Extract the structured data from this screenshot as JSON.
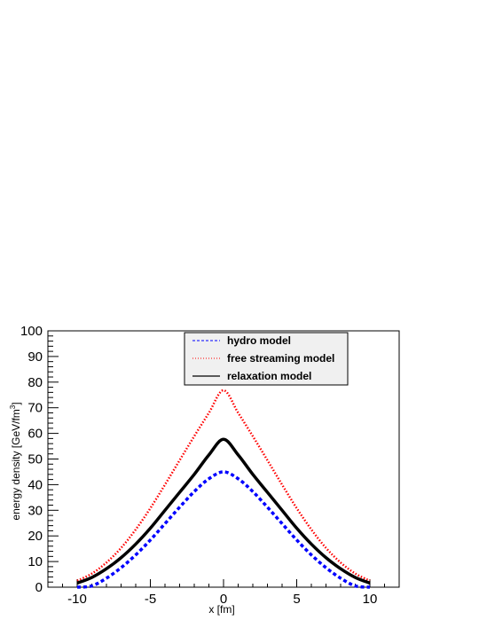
{
  "chart_data": {
    "type": "line",
    "title": "",
    "xlabel": "x [fm]",
    "ylabel_main": "energy density [GeV/fm",
    "ylabel_sup": "3",
    "ylabel_tail": "]",
    "xlim": [
      -12,
      12
    ],
    "ylim": [
      0,
      100
    ],
    "x_ticks": [
      -10,
      -5,
      0,
      5,
      10
    ],
    "x_tick_labels": [
      "-10",
      "-5",
      "0",
      "5",
      "10"
    ],
    "y_ticks": [
      0,
      10,
      20,
      30,
      40,
      50,
      60,
      70,
      80,
      90,
      100
    ],
    "y_tick_labels": [
      "0",
      "10",
      "20",
      "30",
      "40",
      "50",
      "60",
      "70",
      "80",
      "90",
      "100"
    ],
    "grid": false,
    "legend_position": "top-center",
    "x": [
      -10,
      -9,
      -8,
      -7,
      -6,
      -5,
      -4,
      -3,
      -2,
      -1,
      0,
      1,
      2,
      3,
      4,
      5,
      6,
      7,
      8,
      9,
      10
    ],
    "series": [
      {
        "name": "hydro model",
        "color": "#0000ff",
        "style": "dashed",
        "values": [
          0.0,
          0.5,
          3.5,
          7.6,
          12.6,
          18.4,
          24.8,
          31.2,
          37.3,
          42.3,
          45.0,
          42.3,
          37.3,
          31.2,
          24.8,
          18.4,
          12.6,
          7.6,
          3.5,
          0.5,
          0.0
        ]
      },
      {
        "name": "free streaming model",
        "color": "#ff0000",
        "style": "dotted",
        "values": [
          2.5,
          5.3,
          9.6,
          15.3,
          22.5,
          30.8,
          40.0,
          49.5,
          58.9,
          68.0,
          76.8,
          68.0,
          58.9,
          49.5,
          40.0,
          30.8,
          22.5,
          15.3,
          9.6,
          5.3,
          2.5
        ]
      },
      {
        "name": "relaxation model",
        "color": "#000000",
        "style": "solid",
        "values": [
          1.6,
          3.8,
          7.2,
          11.5,
          16.8,
          23.0,
          30.0,
          37.0,
          44.0,
          51.6,
          57.7,
          51.6,
          44.0,
          37.0,
          30.0,
          23.0,
          16.8,
          11.5,
          7.2,
          3.8,
          1.6
        ]
      }
    ]
  }
}
